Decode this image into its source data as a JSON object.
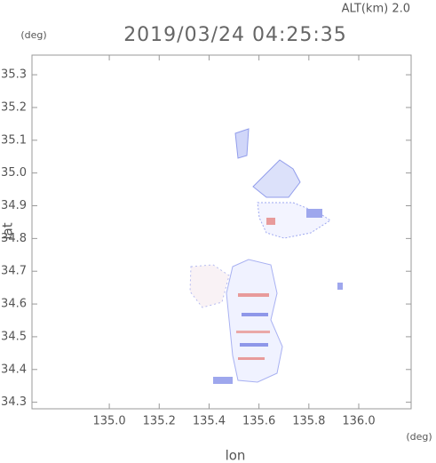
{
  "chart_data": {
    "type": "map",
    "title": "2019/03/24 04:25:35",
    "subtitle": "ALT(km) 2.0",
    "y_unit": "(deg)",
    "x_unit": "(deg)",
    "xlabel": "lon",
    "ylabel": "lat",
    "xlim": [
      134.69,
      136.21
    ],
    "ylim": [
      34.28,
      35.36
    ],
    "xticks": [
      {
        "value": 135,
        "label": "135.0"
      },
      135.2,
      135.4,
      135.6,
      135.8,
      {
        "value": 136,
        "label": "136.0"
      }
    ],
    "yticks": [
      34.3,
      34.4,
      34.5,
      34.6,
      34.7,
      34.8,
      34.9,
      {
        "value": 35,
        "label": "35.0"
      },
      35.1,
      35.2,
      35.3
    ]
  }
}
